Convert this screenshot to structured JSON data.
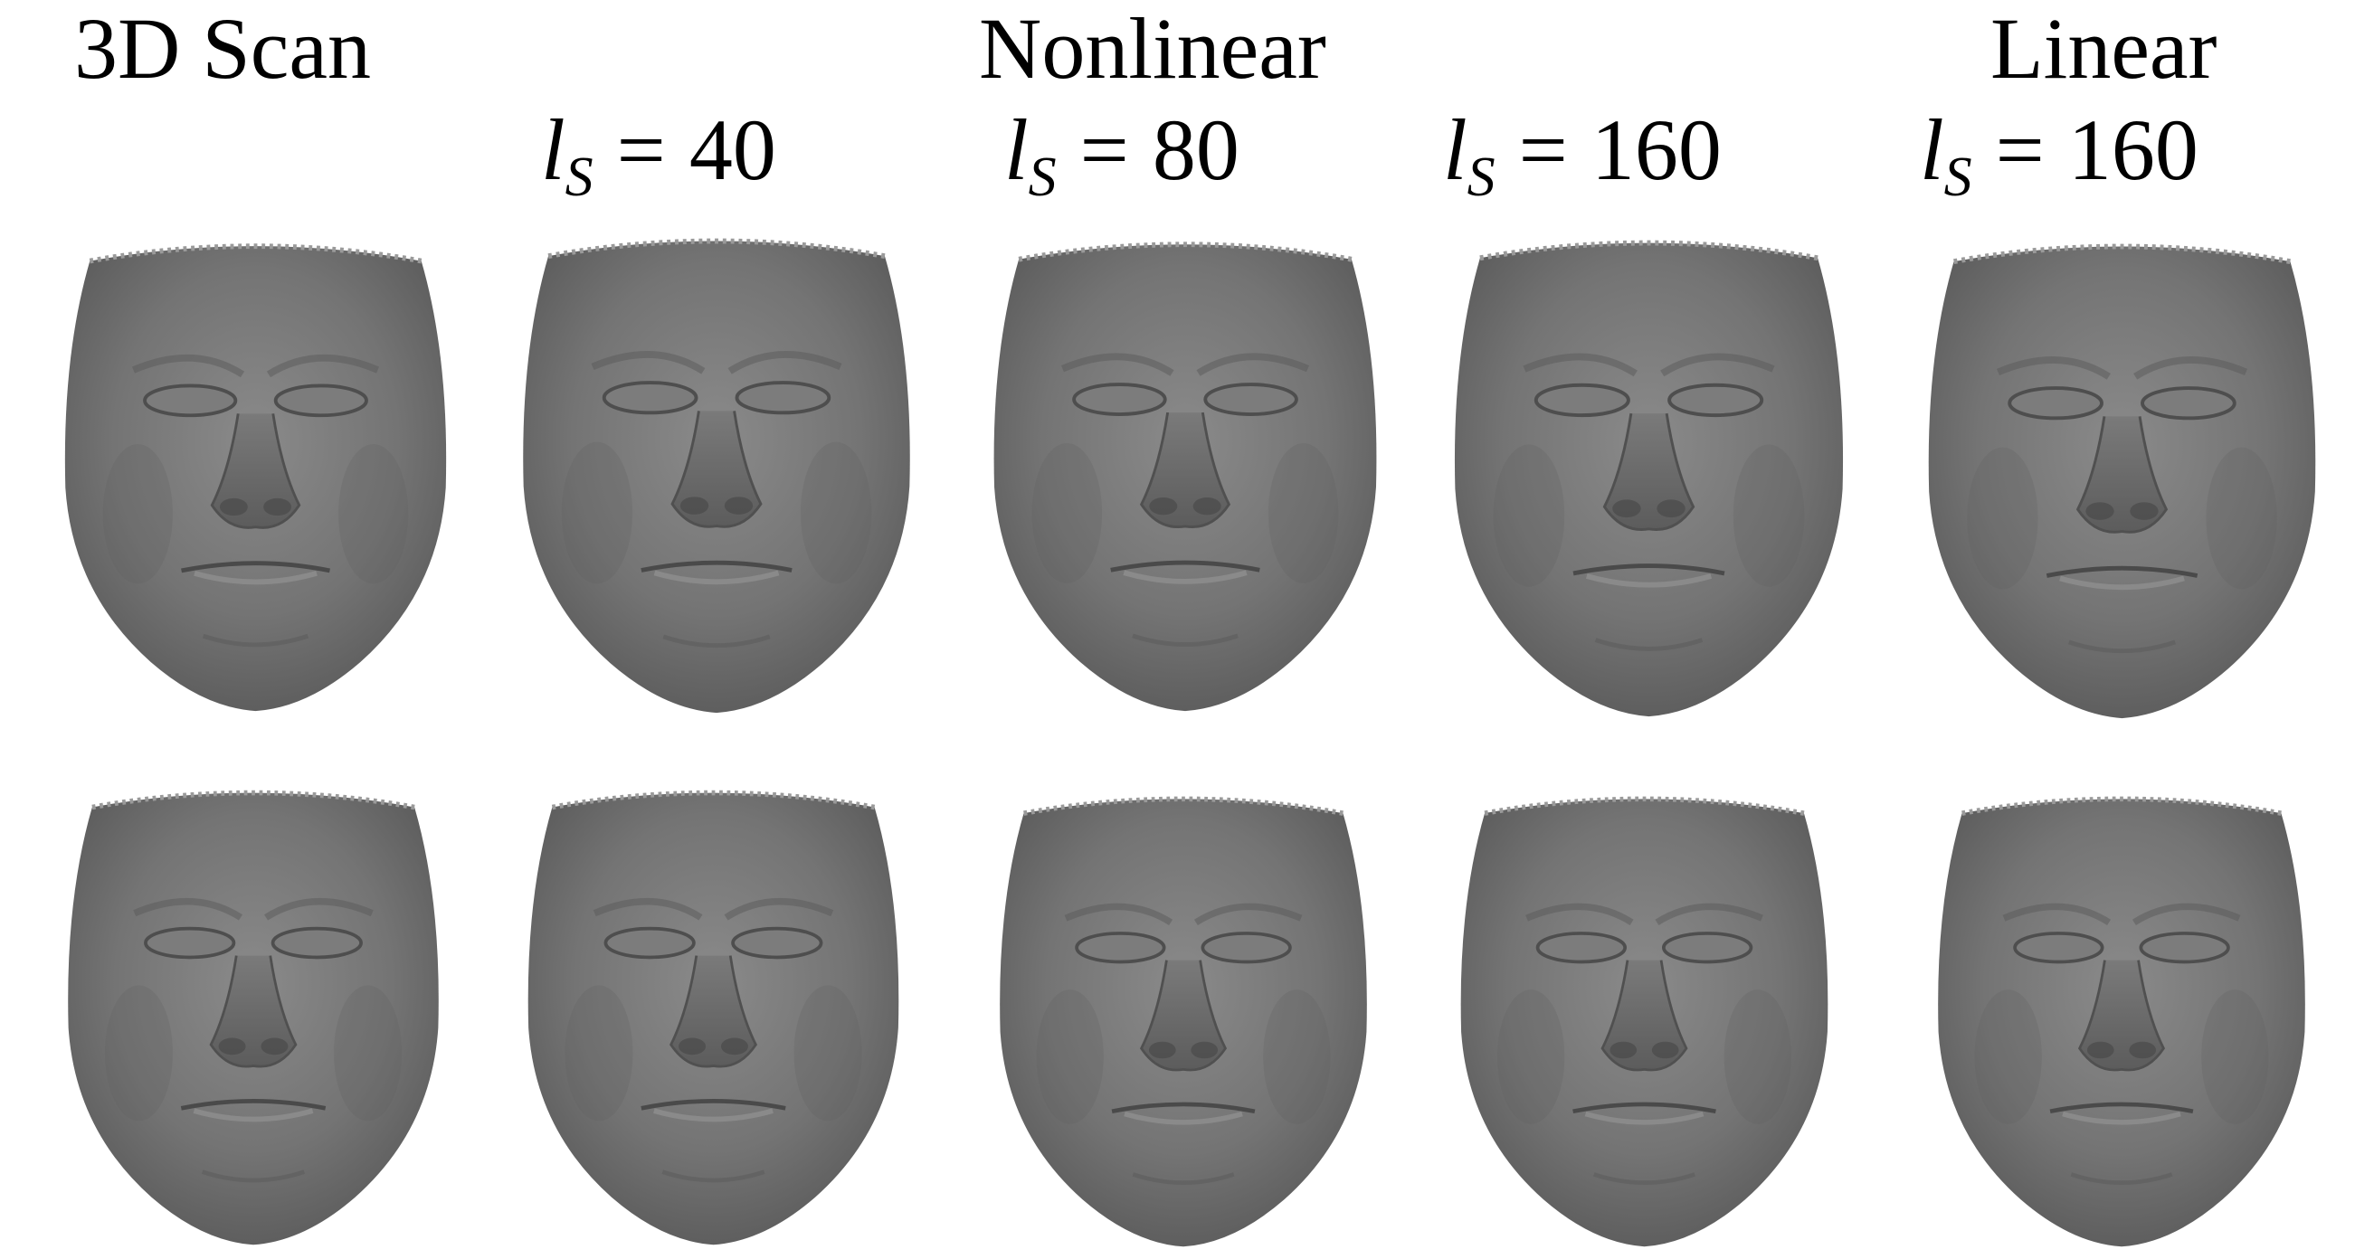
{
  "columns": {
    "scan": {
      "title": "3D Scan"
    },
    "nonlinear": {
      "title": "Nonlinear"
    },
    "linear": {
      "title": "Linear"
    }
  },
  "params": [
    {
      "var": "l",
      "sub": "S",
      "eq": "=",
      "value": "40"
    },
    {
      "var": "l",
      "sub": "S",
      "eq": "=",
      "value": "80"
    },
    {
      "var": "l",
      "sub": "S",
      "eq": "=",
      "value": "160"
    },
    {
      "var": "l",
      "sub": "S",
      "eq": "=",
      "value": "160"
    }
  ],
  "colors": {
    "face": "#6f6f6f",
    "face_light": "#8c8c8c",
    "face_dark": "#4e4e4e",
    "background": "#ffffff"
  },
  "face_images": [
    "face-3d-scan-row1",
    "face-nonlinear-40-row1",
    "face-nonlinear-80-row1",
    "face-nonlinear-160-row1",
    "face-linear-160-row1",
    "face-3d-scan-row2",
    "face-nonlinear-40-row2",
    "face-nonlinear-80-row2",
    "face-nonlinear-160-row2",
    "face-linear-160-row2"
  ]
}
